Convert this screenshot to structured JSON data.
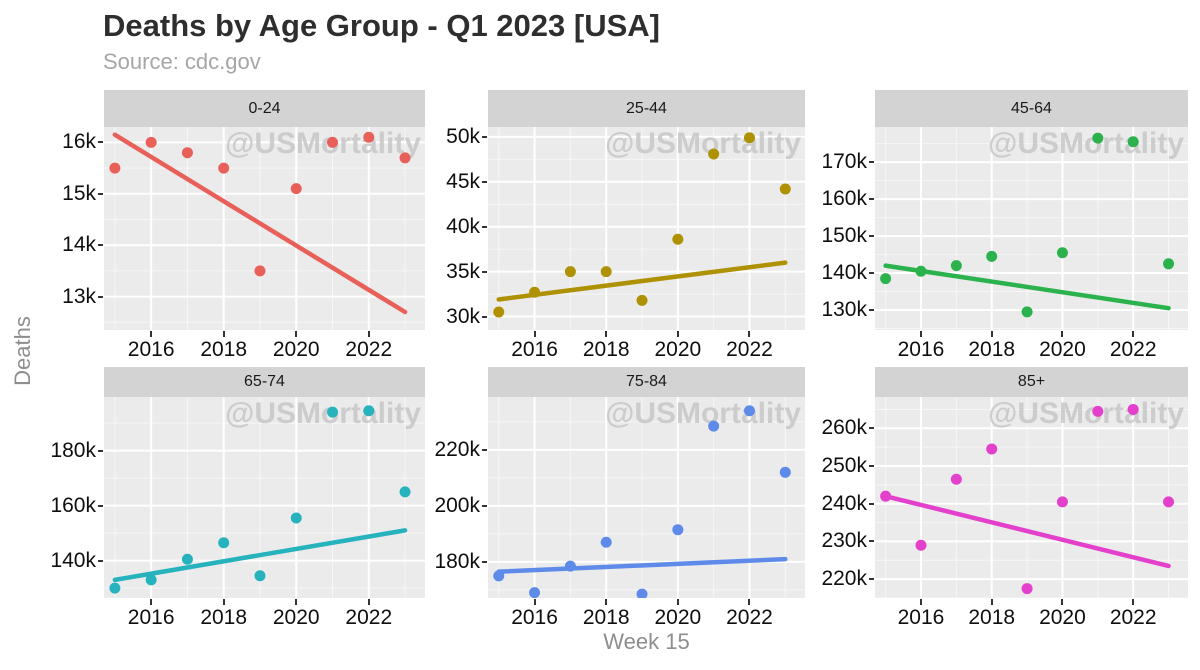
{
  "chart_data": {
    "type": "scatter",
    "title": "Deaths by Age Group - Q1 2023 [USA]",
    "subtitle": "Source: cdc.gov",
    "xlabel": "Week 15",
    "ylabel": "Deaths",
    "watermark": "@USMortality",
    "legend": "none",
    "grid": true,
    "years": [
      2015,
      2016,
      2017,
      2018,
      2019,
      2020,
      2021,
      2022,
      2023
    ],
    "x_major_ticks": [
      2016,
      2018,
      2020,
      2022
    ],
    "x_minor_ticks": [
      2015,
      2017,
      2019,
      2021,
      2023
    ],
    "xlim": [
      2014.7,
      2023.55
    ],
    "facets": [
      {
        "label": "0-24",
        "color": "#E8605A",
        "deaths_k": [
          15.5,
          16.0,
          15.8,
          15.5,
          13.5,
          15.1,
          16.0,
          16.1,
          15.7
        ],
        "trend_k": {
          "y2015": 16.15,
          "y2023": 12.7
        },
        "ylim_k": [
          12.35,
          16.3
        ],
        "y_major_ticks_k": [
          16,
          15,
          14,
          13
        ],
        "y_tick_labels": [
          "16k",
          "15k",
          "14k",
          "13k"
        ],
        "y_minor_ticks_k": [
          15.5,
          14.5,
          13.5,
          12.5
        ]
      },
      {
        "label": "25-44",
        "color": "#AE9204",
        "deaths_k": [
          30.5,
          32.7,
          35.0,
          35.0,
          31.8,
          38.6,
          48.1,
          49.9,
          44.2
        ],
        "trend_k": {
          "y2015": 31.9,
          "y2023": 36.0
        },
        "ylim_k": [
          28.5,
          51.1
        ],
        "y_major_ticks_k": [
          50,
          45,
          40,
          35,
          30
        ],
        "y_tick_labels": [
          "50k",
          "45k",
          "40k",
          "35k",
          "30k"
        ],
        "y_minor_ticks_k": [
          47.5,
          42.5,
          37.5,
          32.5
        ]
      },
      {
        "label": "45-64",
        "color": "#2BB24C",
        "deaths_k": [
          138.5,
          140.5,
          142.0,
          144.5,
          129.5,
          145.5,
          176.5,
          175.5,
          142.5
        ],
        "trend_k": {
          "y2015": 142.0,
          "y2023": 130.5
        },
        "ylim_k": [
          124.6,
          179.5
        ],
        "y_major_ticks_k": [
          170,
          160,
          150,
          140,
          130
        ],
        "y_tick_labels": [
          "170k",
          "160k",
          "150k",
          "140k",
          "130k"
        ],
        "y_minor_ticks_k": [
          175,
          165,
          155,
          145,
          135,
          125
        ]
      },
      {
        "label": "65-74",
        "color": "#26B3BD",
        "deaths_k": [
          130.0,
          133.0,
          140.5,
          146.5,
          134.5,
          155.5,
          194.0,
          194.5,
          165.0
        ],
        "trend_k": {
          "y2015": 133.0,
          "y2023": 151.0
        },
        "ylim_k": [
          126.4,
          199.5
        ],
        "y_major_ticks_k": [
          180,
          160,
          140
        ],
        "y_tick_labels": [
          "180k",
          "160k",
          "140k"
        ],
        "y_minor_ticks_k": [
          190,
          170,
          150,
          130
        ]
      },
      {
        "label": "75-84",
        "color": "#5E8BEA",
        "deaths_k": [
          175.0,
          169.0,
          178.5,
          187.0,
          168.5,
          191.5,
          228.5,
          234.0,
          212.0
        ],
        "trend_k": {
          "y2015": 176.5,
          "y2023": 181.0
        },
        "ylim_k": [
          167.1,
          238.9
        ],
        "y_major_ticks_k": [
          220,
          200,
          180
        ],
        "y_tick_labels": [
          "220k",
          "200k",
          "180k"
        ],
        "y_minor_ticks_k": [
          230,
          210,
          190,
          170
        ]
      },
      {
        "label": "85+",
        "color": "#E341CB",
        "deaths_k": [
          242.0,
          229.0,
          246.5,
          254.5,
          217.5,
          240.5,
          264.5,
          265.0,
          240.5
        ],
        "trend_k": {
          "y2015": 242.0,
          "y2023": 223.5
        },
        "ylim_k": [
          215.0,
          268.3
        ],
        "y_major_ticks_k": [
          260,
          250,
          240,
          230,
          220
        ],
        "y_tick_labels": [
          "260k",
          "250k",
          "240k",
          "230k",
          "220k"
        ],
        "y_minor_ticks_k": [
          265,
          255,
          245,
          235,
          225,
          215
        ]
      }
    ],
    "theme": {
      "panel_bg": "#EBEBEB",
      "strip_bg": "#D3D3D3",
      "grid_color": "#FFFFFF",
      "title_color": "#2E2E2E",
      "subtitle_color": "#A6A6A6",
      "axis_title_color": "#8E8E8E",
      "tick_label_color": "#0F0F0F",
      "watermark_color": "#C7C7C7"
    }
  }
}
